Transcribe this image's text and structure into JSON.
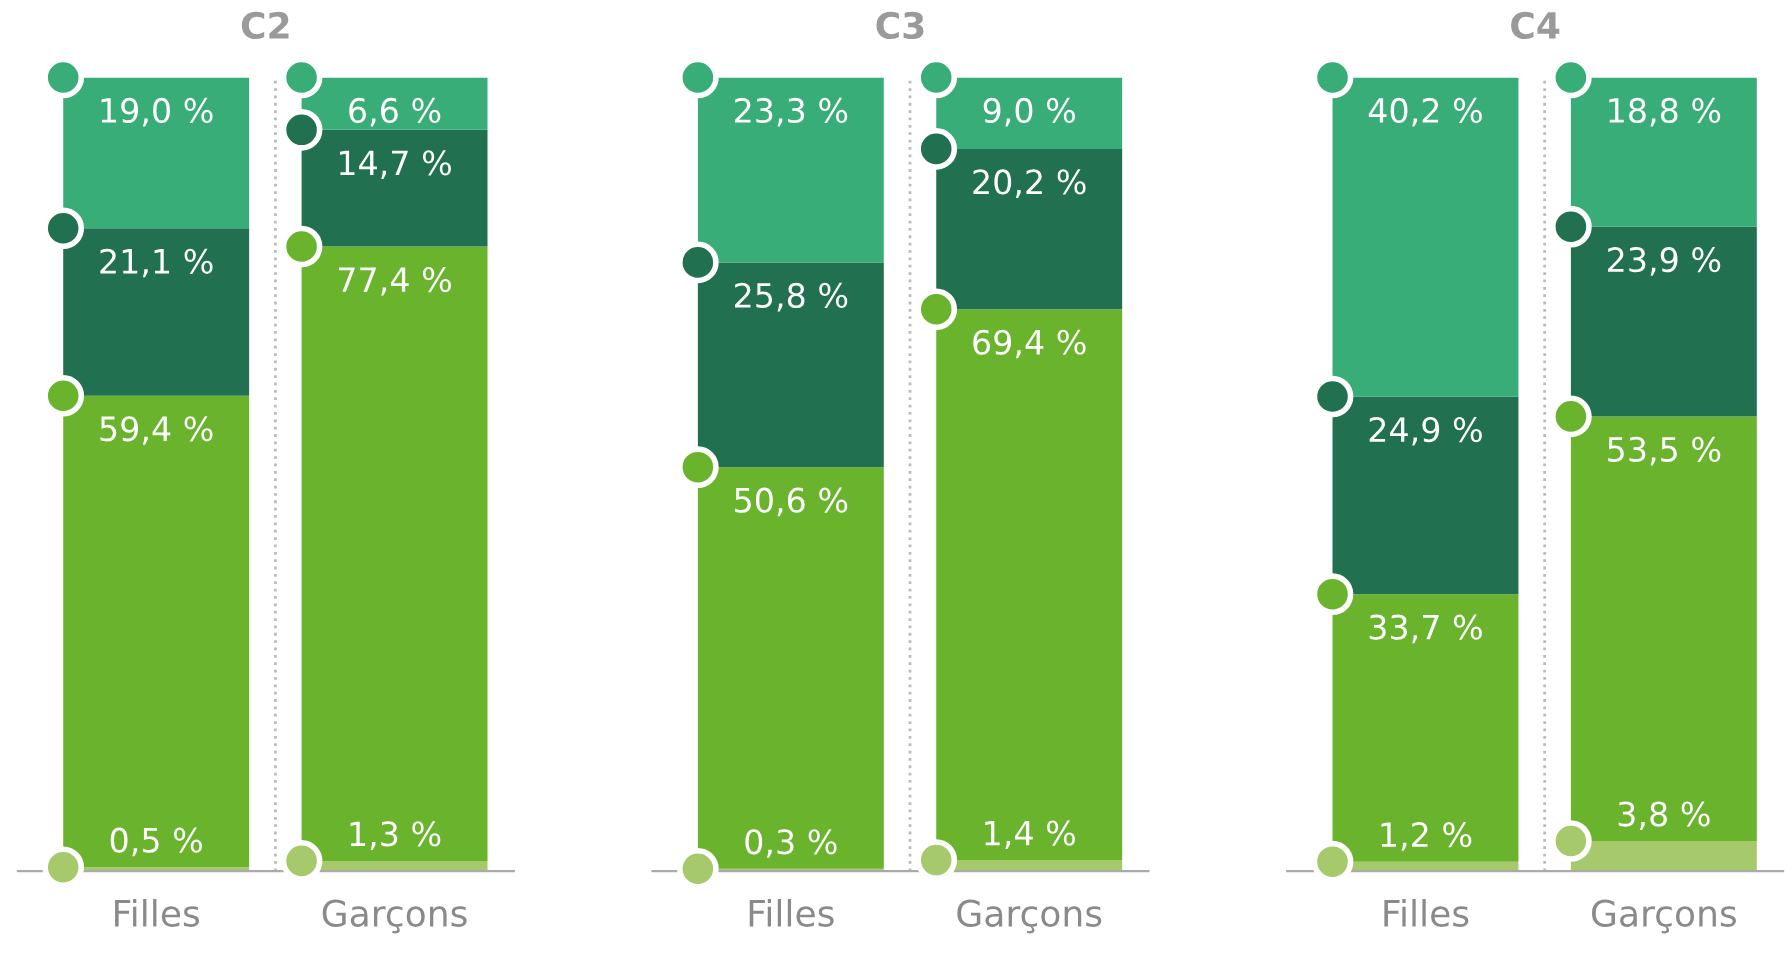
{
  "chart_data": [
    {
      "type": "bar",
      "title": "C2",
      "categories": [
        "Filles",
        "Garçons"
      ],
      "stacked": true,
      "legend": false,
      "grid": false,
      "tick_labels": "x",
      "series": [
        {
          "color": "#a6c96c",
          "values": [
            0.5,
            1.3
          ],
          "value_labels": [
            "0,5 %",
            "1,3 %"
          ]
        },
        {
          "color": "#6ab42d",
          "values": [
            59.4,
            77.4
          ],
          "value_labels": [
            "59,4 %",
            "77,4 %"
          ]
        },
        {
          "color": "#217150",
          "values": [
            21.1,
            14.7
          ],
          "value_labels": [
            "21,1 %",
            "14,7 %"
          ]
        },
        {
          "color": "#39ad78",
          "values": [
            19.0,
            6.6
          ],
          "value_labels": [
            "19,0 %",
            "6,6 %"
          ]
        }
      ]
    },
    {
      "type": "bar",
      "title": "C3",
      "categories": [
        "Filles",
        "Garçons"
      ],
      "stacked": true,
      "legend": false,
      "grid": false,
      "tick_labels": "x",
      "series": [
        {
          "color": "#a6c96c",
          "values": [
            0.3,
            1.4
          ],
          "value_labels": [
            "0,3 %",
            "1,4 %"
          ]
        },
        {
          "color": "#6ab42d",
          "values": [
            50.6,
            69.4
          ],
          "value_labels": [
            "50,6 %",
            "69,4 %"
          ]
        },
        {
          "color": "#217150",
          "values": [
            25.8,
            20.2
          ],
          "value_labels": [
            "25,8 %",
            "20,2 %"
          ]
        },
        {
          "color": "#39ad78",
          "values": [
            23.3,
            9.0
          ],
          "value_labels": [
            "23,3 %",
            "9,0 %"
          ]
        }
      ]
    },
    {
      "type": "bar",
      "title": "C4",
      "categories": [
        "Filles",
        "Garçons"
      ],
      "stacked": true,
      "legend": false,
      "grid": false,
      "tick_labels": "x",
      "series": [
        {
          "color": "#a6c96c",
          "values": [
            1.2,
            3.8
          ],
          "value_labels": [
            "1,2 %",
            "3,8 %"
          ]
        },
        {
          "color": "#6ab42d",
          "values": [
            33.7,
            53.5
          ],
          "value_labels": [
            "33,7 %",
            "53,5 %"
          ]
        },
        {
          "color": "#217150",
          "values": [
            24.9,
            23.9
          ],
          "value_labels": [
            "24,9 %",
            "23,9 %"
          ]
        },
        {
          "color": "#39ad78",
          "values": [
            40.2,
            18.8
          ],
          "value_labels": [
            "40,2 %",
            "18,8 %"
          ]
        }
      ]
    }
  ]
}
